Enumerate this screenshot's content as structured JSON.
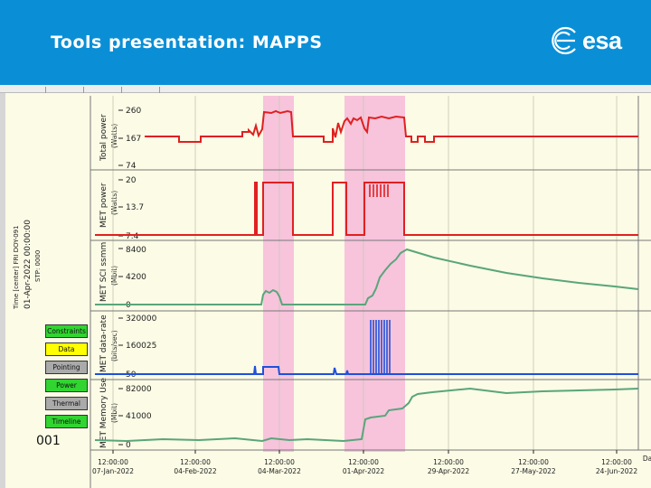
{
  "slide": {
    "title": "Tools presentation: MAPPS",
    "logo_text": "esa"
  },
  "time_info": {
    "caption": "Time [center] FRI DOY-091",
    "timestamp": "01-Apr-2022 00:00:00",
    "step": "STP: 0000"
  },
  "buttons": [
    {
      "label": "Constraints",
      "color": "#31d431"
    },
    {
      "label": "Data",
      "color": "#ffff00"
    },
    {
      "label": "Pointing",
      "color": "#aaaaaa"
    },
    {
      "label": "Power",
      "color": "#31d431"
    },
    {
      "label": "Thermal",
      "color": "#aaaaaa"
    },
    {
      "label": "Timeline",
      "color": "#31d431"
    }
  ],
  "row_number": "001",
  "panels": [
    {
      "title": "Total power",
      "unit": "(Watts)",
      "ticks": [
        "260",
        "167",
        "74"
      ],
      "color": "#e02020"
    },
    {
      "title": "MET power",
      "unit": "(Watts)",
      "ticks": [
        "20",
        "13.7",
        "7.4"
      ],
      "color": "#e02020"
    },
    {
      "title": "MET SCI ssmm",
      "unit": "(Mbit)",
      "ticks": [
        "8400",
        "4200",
        "0"
      ],
      "color": "#5aa57a"
    },
    {
      "title": "MET data-rate",
      "unit": "(bits/sec)",
      "ticks": [
        "320000",
        "160025",
        "50"
      ],
      "color": "#2050d8"
    },
    {
      "title": "MET Memory Use",
      "unit": "(Mbit)",
      "ticks": [
        "82000",
        "41000",
        "0"
      ],
      "color": "#5aa57a"
    }
  ],
  "time_axis": {
    "labels": [
      {
        "time": "12:00:00",
        "date": "07-Jan-2022"
      },
      {
        "time": "12:00:00",
        "date": "04-Feb-2022"
      },
      {
        "time": "12:00:00",
        "date": "04-Mar-2022"
      },
      {
        "time": "12:00:00",
        "date": "01-Apr-2022"
      },
      {
        "time": "12:00:00",
        "date": "29-Apr-2022"
      },
      {
        "time": "12:00:00",
        "date": "27-May-2022"
      },
      {
        "time": "12:00:00",
        "date": "24-Jun-2022"
      }
    ],
    "overflow_label": "Da"
  }
}
